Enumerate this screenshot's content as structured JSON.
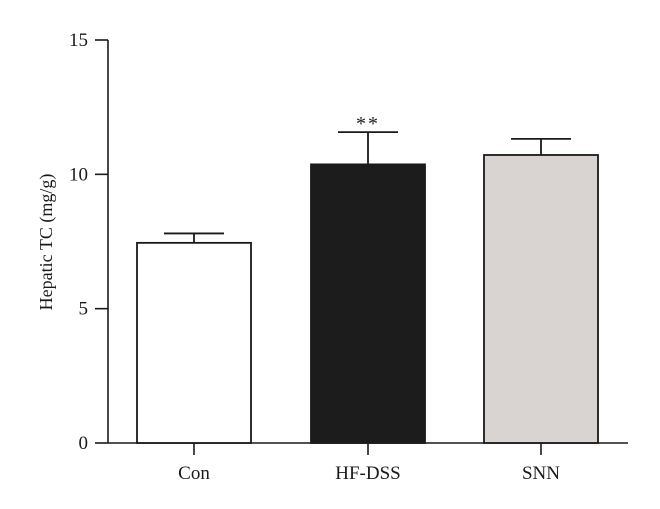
{
  "chart_data": {
    "type": "bar",
    "categories": [
      "Con",
      "HF-DSS",
      "SNN"
    ],
    "values": [
      7.45,
      10.37,
      10.72
    ],
    "errors": [
      0.35,
      1.2,
      0.6
    ],
    "bar_colors": [
      "#ffffff",
      "#1c1c1c",
      "#d9d3d1"
    ],
    "annotations": [
      "",
      "**",
      ""
    ],
    "ylabel": "Hepatic TC (mg/g)",
    "xlabel": "",
    "ylim": [
      0,
      15
    ],
    "yticks": [
      0,
      5,
      10,
      15
    ],
    "grid": false,
    "legend": "none"
  }
}
